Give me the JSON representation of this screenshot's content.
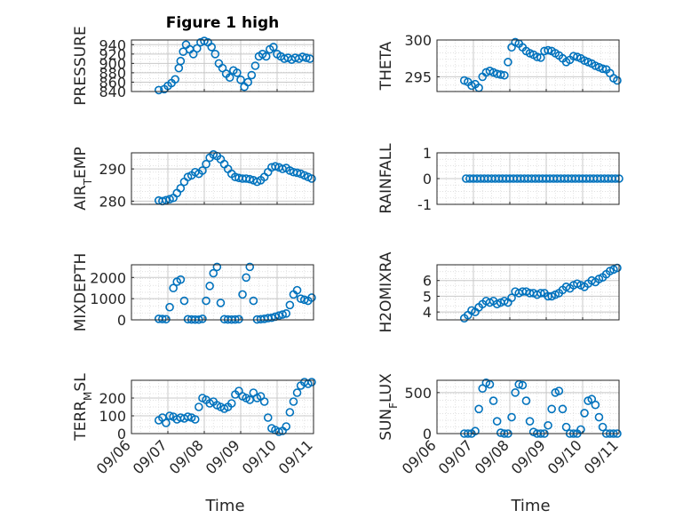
{
  "chart_data": [
    {
      "type": "scatter",
      "title": "Figure 1 high",
      "ylabel": "PRESSURE",
      "ylim": [
        840,
        950
      ],
      "yticks": [
        "940",
        "920",
        "900",
        "880",
        "860",
        "840"
      ],
      "ytick_values": [
        940,
        920,
        900,
        880,
        860,
        840
      ],
      "xlim": [
        0,
        5
      ],
      "grid": true,
      "marker": "circle-open",
      "color": "#0072BD",
      "series": [
        {
          "x": [
            0.75,
            0.9,
            1.0,
            1.1,
            1.2,
            1.3,
            1.35,
            1.42,
            1.5,
            1.6,
            1.7,
            1.8,
            1.9,
            2.0,
            2.1,
            2.2,
            2.3,
            2.4,
            2.5,
            2.6,
            2.7,
            2.8,
            2.9,
            3.0,
            3.1,
            3.2,
            3.3,
            3.4,
            3.5,
            3.6,
            3.7,
            3.8,
            3.9,
            4.0,
            4.1,
            4.2,
            4.3,
            4.4,
            4.5,
            4.6,
            4.7,
            4.8,
            4.9
          ],
          "y": [
            843,
            845,
            852,
            858,
            866,
            890,
            905,
            925,
            940,
            930,
            920,
            932,
            945,
            948,
            945,
            935,
            920,
            900,
            890,
            878,
            870,
            885,
            880,
            865,
            850,
            860,
            875,
            895,
            915,
            920,
            915,
            930,
            935,
            920,
            915,
            910,
            912,
            908,
            912,
            910,
            914,
            912,
            910
          ]
        }
      ]
    },
    {
      "type": "scatter",
      "title": "",
      "ylabel": "THETA",
      "ylim": [
        293,
        300
      ],
      "yticks": [
        "300",
        "295"
      ],
      "ytick_values": [
        300,
        295
      ],
      "xlim": [
        0,
        5
      ],
      "grid": true,
      "series": [
        {
          "x": [
            0.75,
            0.85,
            0.95,
            1.05,
            1.15,
            1.25,
            1.35,
            1.45,
            1.55,
            1.65,
            1.75,
            1.85,
            1.95,
            2.05,
            2.15,
            2.25,
            2.35,
            2.45,
            2.55,
            2.65,
            2.75,
            2.85,
            2.95,
            3.05,
            3.15,
            3.25,
            3.35,
            3.45,
            3.55,
            3.65,
            3.75,
            3.85,
            3.95,
            4.05,
            4.15,
            4.25,
            4.35,
            4.45,
            4.55,
            4.65,
            4.75,
            4.85,
            4.95
          ],
          "y": [
            294.5,
            294.3,
            293.8,
            294.0,
            293.5,
            295.0,
            295.6,
            295.8,
            295.6,
            295.4,
            295.3,
            295.2,
            297.0,
            299.0,
            299.7,
            299.5,
            299.0,
            298.5,
            298.2,
            298.0,
            297.7,
            297.6,
            298.5,
            298.6,
            298.5,
            298.2,
            297.9,
            297.5,
            297.0,
            297.3,
            297.8,
            297.7,
            297.5,
            297.2,
            297.0,
            296.8,
            296.5,
            296.3,
            296.1,
            296.0,
            295.5,
            294.8,
            294.5
          ]
        }
      ]
    },
    {
      "type": "scatter",
      "title": "",
      "ylabel": "AIR_TEMP",
      "ylim": [
        279,
        295
      ],
      "yticks": [
        "290",
        "280"
      ],
      "ytick_values": [
        290,
        280
      ],
      "xlim": [
        0,
        5
      ],
      "grid": true,
      "series": [
        {
          "x": [
            0.75,
            0.85,
            0.95,
            1.05,
            1.15,
            1.25,
            1.35,
            1.45,
            1.55,
            1.65,
            1.75,
            1.85,
            1.95,
            2.05,
            2.15,
            2.25,
            2.35,
            2.45,
            2.55,
            2.65,
            2.75,
            2.85,
            2.95,
            3.05,
            3.15,
            3.25,
            3.35,
            3.45,
            3.55,
            3.65,
            3.75,
            3.85,
            3.95,
            4.05,
            4.15,
            4.25,
            4.35,
            4.45,
            4.55,
            4.65,
            4.75,
            4.85,
            4.95
          ],
          "y": [
            280.2,
            280.0,
            280.3,
            280.6,
            281.0,
            282.5,
            284.0,
            286.0,
            287.5,
            288.0,
            289.0,
            288.5,
            289.5,
            291.5,
            293.5,
            294.5,
            294.0,
            293.0,
            291.5,
            290.0,
            288.5,
            287.5,
            287.2,
            287.0,
            287.0,
            286.8,
            286.5,
            286.0,
            286.5,
            287.5,
            289.0,
            290.5,
            290.8,
            290.5,
            290.0,
            290.3,
            289.5,
            289.0,
            288.8,
            288.5,
            288.0,
            287.5,
            287.0
          ]
        }
      ]
    },
    {
      "type": "scatter",
      "title": "",
      "ylabel": "RAINFALL",
      "ylim": [
        -1,
        1
      ],
      "yticks": [
        "1",
        "0",
        "-1"
      ],
      "ytick_values": [
        1,
        0,
        -1
      ],
      "xlim": [
        0,
        5
      ],
      "grid": true,
      "series": [
        {
          "x": [
            0.8,
            0.9,
            1.0,
            1.1,
            1.2,
            1.3,
            1.4,
            1.5,
            1.6,
            1.7,
            1.8,
            1.9,
            2.0,
            2.1,
            2.2,
            2.3,
            2.4,
            2.5,
            2.6,
            2.7,
            2.8,
            2.9,
            3.0,
            3.1,
            3.2,
            3.3,
            3.4,
            3.5,
            3.6,
            3.7,
            3.8,
            3.9,
            4.0,
            4.1,
            4.2,
            4.3,
            4.4,
            4.5,
            4.6,
            4.7,
            4.8,
            4.9,
            5.0
          ],
          "y": [
            0,
            0,
            0,
            0,
            0,
            0,
            0,
            0,
            0,
            0,
            0,
            0,
            0,
            0,
            0,
            0,
            0,
            0,
            0,
            0,
            0,
            0,
            0,
            0,
            0,
            0,
            0,
            0,
            0,
            0,
            0,
            0,
            0,
            0,
            0,
            0,
            0,
            0,
            0,
            0,
            0,
            0,
            0
          ]
        }
      ]
    },
    {
      "type": "scatter",
      "title": "",
      "ylabel": "MIXDEPTH",
      "ylim": [
        0,
        2600
      ],
      "yticks": [
        "2000",
        "1000",
        "0"
      ],
      "ytick_values": [
        2000,
        1000,
        0
      ],
      "xlim": [
        0,
        5
      ],
      "grid": true,
      "series": [
        {
          "x": [
            0.75,
            0.85,
            0.95,
            1.05,
            1.15,
            1.25,
            1.35,
            1.45,
            1.55,
            1.65,
            1.75,
            1.85,
            1.95,
            2.05,
            2.15,
            2.25,
            2.35,
            2.45,
            2.55,
            2.65,
            2.75,
            2.85,
            2.95,
            3.05,
            3.15,
            3.25,
            3.35,
            3.45,
            3.55,
            3.65,
            3.75,
            3.85,
            3.95,
            4.05,
            4.15,
            4.25,
            4.35,
            4.45,
            4.55,
            4.65,
            4.75,
            4.85,
            4.95
          ],
          "y": [
            50,
            40,
            30,
            600,
            1500,
            1800,
            1900,
            900,
            30,
            20,
            15,
            10,
            50,
            900,
            1600,
            2200,
            2500,
            800,
            30,
            20,
            15,
            20,
            30,
            1200,
            2000,
            2500,
            900,
            20,
            30,
            50,
            80,
            100,
            150,
            200,
            250,
            300,
            700,
            1200,
            1400,
            1000,
            950,
            900,
            1050
          ]
        }
      ]
    },
    {
      "type": "scatter",
      "title": "",
      "ylabel": "H2OMIXRA",
      "ylim": [
        3.5,
        7
      ],
      "yticks": [
        "6",
        "5",
        "4"
      ],
      "ytick_values": [
        6,
        5,
        4
      ],
      "xlim": [
        0,
        5
      ],
      "grid": true,
      "series": [
        {
          "x": [
            0.75,
            0.85,
            0.95,
            1.05,
            1.15,
            1.25,
            1.35,
            1.45,
            1.55,
            1.65,
            1.75,
            1.85,
            1.95,
            2.05,
            2.15,
            2.25,
            2.35,
            2.45,
            2.55,
            2.65,
            2.75,
            2.85,
            2.95,
            3.05,
            3.15,
            3.25,
            3.35,
            3.45,
            3.55,
            3.65,
            3.75,
            3.85,
            3.95,
            4.05,
            4.15,
            4.25,
            4.35,
            4.45,
            4.55,
            4.65,
            4.75,
            4.85,
            4.95
          ],
          "y": [
            3.6,
            3.8,
            4.1,
            4.0,
            4.3,
            4.5,
            4.7,
            4.6,
            4.7,
            4.5,
            4.6,
            4.7,
            4.6,
            4.9,
            5.3,
            5.2,
            5.3,
            5.3,
            5.2,
            5.2,
            5.1,
            5.2,
            5.2,
            5.0,
            5.0,
            5.1,
            5.2,
            5.4,
            5.6,
            5.5,
            5.7,
            5.8,
            5.7,
            5.6,
            5.8,
            6.0,
            5.9,
            6.1,
            6.2,
            6.4,
            6.6,
            6.7,
            6.8
          ]
        }
      ]
    },
    {
      "type": "scatter",
      "title": "",
      "ylabel": "TERR_MSL",
      "ylim": [
        0,
        300
      ],
      "yticks": [
        "200",
        "100",
        "0"
      ],
      "ytick_values": [
        200,
        100,
        0
      ],
      "xlim": [
        0,
        5
      ],
      "grid": true,
      "xticks": [
        "09/06",
        "09/07",
        "09/08",
        "09/09",
        "09/10",
        "09/11"
      ],
      "xtick_values": [
        0,
        1,
        2,
        3,
        4,
        5
      ],
      "xlabel": "Time",
      "series": [
        {
          "x": [
            0.75,
            0.85,
            0.95,
            1.05,
            1.15,
            1.25,
            1.35,
            1.45,
            1.55,
            1.65,
            1.75,
            1.85,
            1.95,
            2.05,
            2.15,
            2.25,
            2.35,
            2.45,
            2.55,
            2.65,
            2.75,
            2.85,
            2.95,
            3.05,
            3.15,
            3.25,
            3.35,
            3.45,
            3.55,
            3.65,
            3.75,
            3.85,
            3.95,
            4.05,
            4.15,
            4.25,
            4.35,
            4.45,
            4.55,
            4.65,
            4.75,
            4.85,
            4.95
          ],
          "y": [
            75,
            90,
            60,
            100,
            95,
            80,
            90,
            85,
            95,
            90,
            80,
            150,
            200,
            190,
            170,
            180,
            160,
            150,
            140,
            150,
            170,
            220,
            240,
            210,
            200,
            190,
            230,
            200,
            210,
            180,
            90,
            30,
            20,
            10,
            15,
            40,
            120,
            180,
            230,
            270,
            290,
            280,
            290
          ]
        }
      ]
    },
    {
      "type": "scatter",
      "title": "",
      "ylabel": "SUN_FLUX",
      "ylim": [
        0,
        650
      ],
      "yticks": [
        "500",
        "0"
      ],
      "ytick_values": [
        500,
        0
      ],
      "xlim": [
        0,
        5
      ],
      "grid": true,
      "xticks": [
        "09/06",
        "09/07",
        "09/08",
        "09/09",
        "09/10",
        "09/11"
      ],
      "xtick_values": [
        0,
        1,
        2,
        3,
        4,
        5
      ],
      "xlabel": "Time",
      "series": [
        {
          "x": [
            0.75,
            0.85,
            0.95,
            1.05,
            1.15,
            1.25,
            1.35,
            1.45,
            1.55,
            1.65,
            1.75,
            1.85,
            1.95,
            2.05,
            2.15,
            2.25,
            2.35,
            2.45,
            2.55,
            2.65,
            2.75,
            2.85,
            2.95,
            3.05,
            3.15,
            3.25,
            3.35,
            3.45,
            3.55,
            3.65,
            3.75,
            3.85,
            3.95,
            4.05,
            4.15,
            4.25,
            4.35,
            4.45,
            4.55,
            4.65,
            4.75,
            4.85,
            4.95
          ],
          "y": [
            0,
            0,
            0,
            30,
            300,
            550,
            620,
            600,
            400,
            150,
            10,
            0,
            0,
            200,
            500,
            600,
            590,
            400,
            150,
            20,
            0,
            0,
            0,
            100,
            300,
            500,
            520,
            300,
            80,
            0,
            0,
            0,
            50,
            250,
            400,
            420,
            350,
            200,
            80,
            0,
            0,
            0,
            0
          ]
        }
      ]
    }
  ]
}
